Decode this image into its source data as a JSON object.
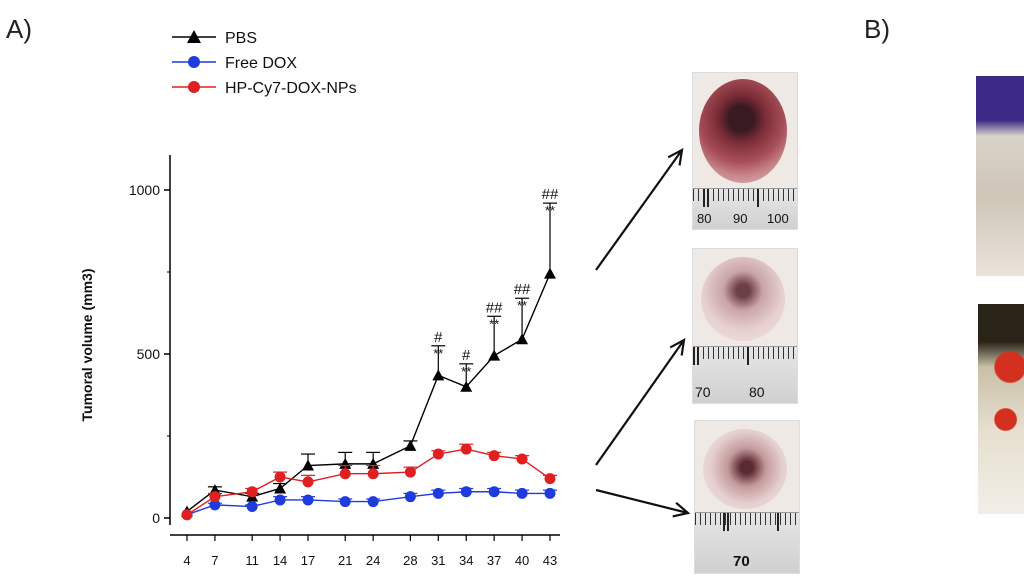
{
  "panels": {
    "a": "A)",
    "b": "B)"
  },
  "colors": {
    "pbs": "#000000",
    "free_dox": "#1f3bdc",
    "np": "#e02020"
  },
  "photos": {
    "p1": {
      "labels": [
        "80",
        "90",
        "100"
      ]
    },
    "p2": {
      "labels": [
        "70",
        "80"
      ]
    },
    "p3": {
      "labels": [
        "70"
      ]
    }
  },
  "chart_data": {
    "type": "line",
    "ylabel": "Tumoral volume (mm3)",
    "xlabel": "",
    "x": [
      4,
      7,
      11,
      14,
      17,
      21,
      24,
      28,
      31,
      34,
      37,
      40,
      43
    ],
    "yticks": [
      0,
      500,
      1000
    ],
    "ylim": [
      0,
      1100
    ],
    "legend_position": "top-left",
    "series": [
      {
        "name": "PBS",
        "marker": "triangle",
        "color": "#000000",
        "values": [
          20,
          85,
          65,
          90,
          160,
          165,
          165,
          220,
          435,
          400,
          495,
          545,
          745
        ],
        "errors": [
          0,
          10,
          10,
          15,
          35,
          35,
          35,
          15,
          90,
          70,
          120,
          125,
          215
        ]
      },
      {
        "name": "Free DOX",
        "marker": "circle",
        "color": "#1f3bdc",
        "values": [
          10,
          40,
          35,
          55,
          55,
          50,
          50,
          65,
          75,
          80,
          80,
          75,
          75
        ],
        "errors": [
          0,
          5,
          5,
          10,
          10,
          8,
          8,
          10,
          10,
          10,
          10,
          10,
          10
        ]
      },
      {
        "name": "HP-Cy7-DOX-NPs",
        "marker": "circle",
        "color": "#e02020",
        "values": [
          10,
          65,
          80,
          125,
          110,
          135,
          135,
          140,
          195,
          210,
          190,
          180,
          120
        ],
        "errors": [
          0,
          10,
          10,
          15,
          20,
          25,
          25,
          15,
          10,
          15,
          10,
          10,
          10
        ]
      }
    ],
    "annotations": [
      {
        "x": 31,
        "stars": "**",
        "hash": "#"
      },
      {
        "x": 34,
        "stars": "**",
        "hash": "#"
      },
      {
        "x": 37,
        "stars": "**",
        "hash": "##"
      },
      {
        "x": 40,
        "stars": "**",
        "hash": "##"
      },
      {
        "x": 43,
        "stars": "**",
        "hash": "##"
      }
    ]
  }
}
